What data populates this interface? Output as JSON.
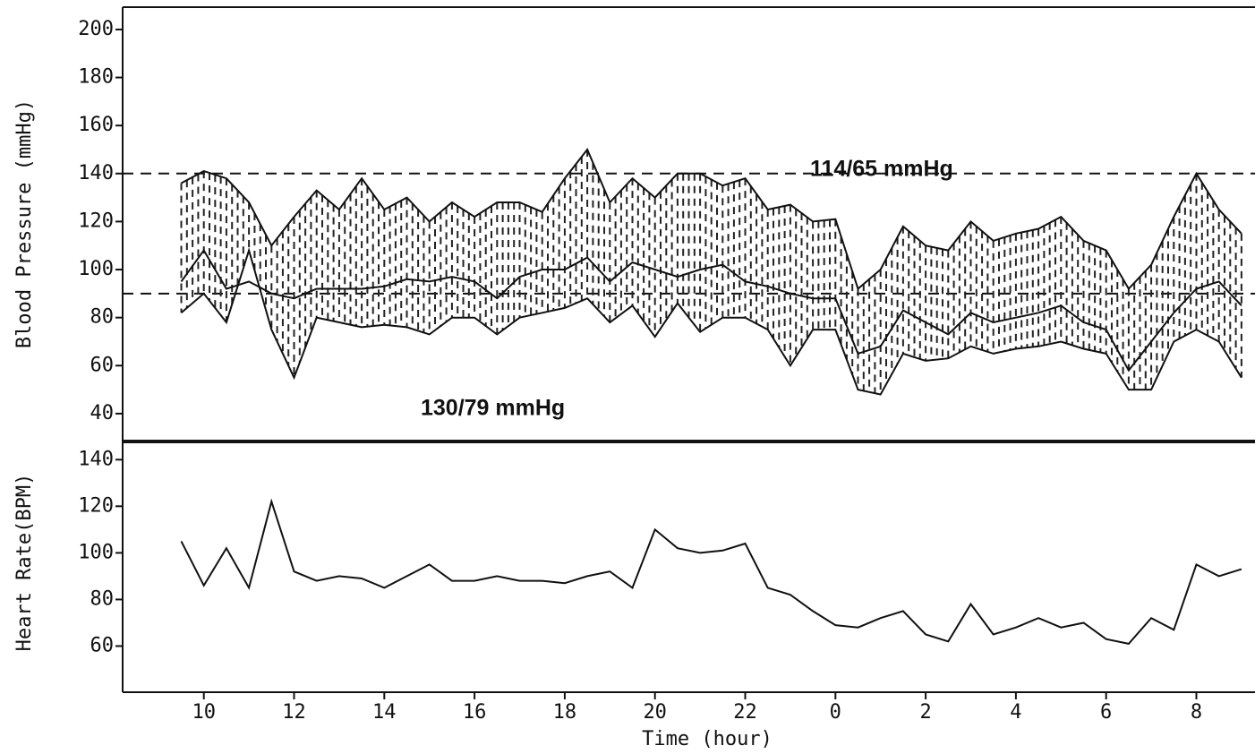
{
  "chart_data": [
    {
      "type": "band",
      "y_label": "Blood Pressure (mmHg)",
      "x": [
        9.5,
        10,
        10.5,
        11,
        11.5,
        12,
        12.5,
        13,
        13.5,
        14,
        14.5,
        15,
        15.5,
        16,
        16.5,
        17,
        17.5,
        18,
        18.5,
        19,
        19.5,
        20,
        20.5,
        21,
        21.5,
        22,
        22.5,
        23,
        23.5,
        24,
        24.5,
        25,
        25.5,
        26,
        26.5,
        27,
        27.5,
        28,
        28.5,
        29,
        29.5,
        30,
        30.5,
        31,
        31.5,
        32,
        32.5,
        33
      ],
      "series": [
        {
          "color": "#111111",
          "values": [
            136,
            141,
            138,
            128,
            110,
            122,
            133,
            125,
            138,
            125,
            130,
            120,
            128,
            122,
            128,
            128,
            124,
            138,
            150,
            128,
            138,
            130,
            140,
            140,
            135,
            138,
            125,
            127,
            120,
            121,
            92,
            100,
            118,
            110,
            108,
            120,
            112,
            115,
            117,
            122,
            112,
            108,
            92,
            102,
            122,
            140,
            125,
            115
          ]
        },
        {
          "color": "#111111",
          "values": [
            95,
            108,
            92,
            95,
            90,
            88,
            92,
            92,
            92,
            93,
            96,
            95,
            97,
            95,
            88,
            97,
            100,
            100,
            105,
            95,
            103,
            100,
            97,
            100,
            102,
            95,
            93,
            90,
            88,
            88,
            65,
            68,
            83,
            78,
            73,
            82,
            78,
            80,
            82,
            85,
            78,
            75,
            58,
            70,
            82,
            92,
            95,
            85
          ]
        },
        {
          "color": "#111111",
          "values": [
            82,
            90,
            78,
            108,
            75,
            55,
            80,
            78,
            76,
            77,
            76,
            73,
            80,
            80,
            73,
            80,
            82,
            84,
            88,
            78,
            85,
            72,
            86,
            74,
            80,
            80,
            75,
            60,
            75,
            75,
            50,
            48,
            65,
            62,
            63,
            68,
            65,
            67,
            68,
            70,
            67,
            65,
            50,
            50,
            70,
            75,
            70,
            55
          ]
        }
      ],
      "fill_between": true,
      "hlines": [
        140,
        90
      ],
      "annotations": [
        "114/65 mmHg",
        "130/79 mmHg"
      ],
      "xlim": [
        8.2,
        33.3
      ],
      "ylim": [
        28.4,
        209.3
      ],
      "yticks": [
        40,
        60,
        80,
        100,
        120,
        140,
        160,
        180,
        200
      ]
    },
    {
      "type": "line",
      "y_label": "Heart Rate(BPM)",
      "x_label": "Time (hour)",
      "x": [
        9.5,
        10,
        10.5,
        11,
        11.5,
        12,
        12.5,
        13,
        13.5,
        14,
        14.5,
        15,
        15.5,
        16,
        16.5,
        17,
        17.5,
        18,
        18.5,
        19,
        19.5,
        20,
        20.5,
        21,
        21.5,
        22,
        22.5,
        23,
        23.5,
        24,
        24.5,
        25,
        25.5,
        26,
        26.5,
        27,
        27.5,
        28,
        28.5,
        29,
        29.5,
        30,
        30.5,
        31,
        31.5,
        32,
        32.5,
        33
      ],
      "color": "#111111",
      "values": [
        105,
        86,
        102,
        85,
        122,
        92,
        88,
        90,
        89,
        85,
        90,
        95,
        88,
        88,
        90,
        88,
        88,
        87,
        90,
        92,
        85,
        110,
        102,
        100,
        101,
        104,
        85,
        82,
        75,
        69,
        68,
        72,
        75,
        65,
        62,
        78,
        65,
        68,
        72,
        68,
        70,
        63,
        61,
        72,
        67,
        95,
        90,
        93
      ],
      "xlim": [
        8.2,
        33.3
      ],
      "ylim": [
        40.2,
        147.8
      ],
      "xticks": [
        10,
        12,
        14,
        16,
        18,
        20,
        22,
        {
          "value": 24,
          "label": "0"
        },
        {
          "value": 26,
          "label": "2"
        },
        {
          "value": 28,
          "label": "4"
        },
        {
          "value": 30,
          "label": "6"
        },
        {
          "value": 32,
          "label": "8"
        }
      ],
      "yticks": [
        60,
        80,
        100,
        120,
        140
      ]
    }
  ]
}
